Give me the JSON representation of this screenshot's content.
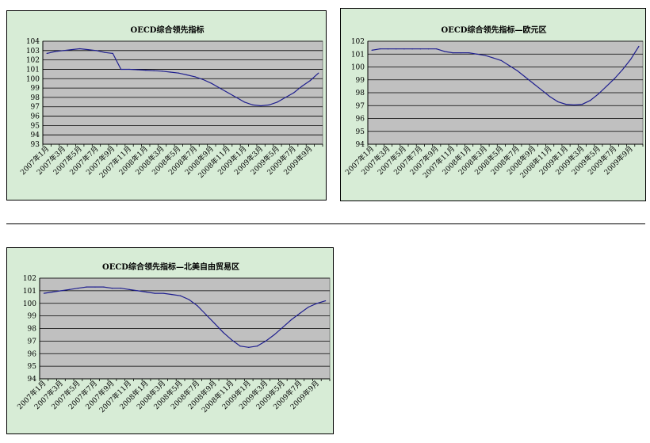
{
  "chart_data": [
    {
      "type": "line",
      "title": "OECD综合领先指标",
      "xlabel": "",
      "ylabel": "",
      "ylim": [
        93,
        104
      ],
      "yticks": [
        93,
        94,
        95,
        96,
        97,
        98,
        99,
        100,
        101,
        102,
        103,
        104
      ],
      "grid": true,
      "x_tick_labels": [
        "2007年1月",
        "2007年3月",
        "2007年5月",
        "2007年7月",
        "2007年9月",
        "2007年11月",
        "2008年1月",
        "2008年3月",
        "2008年5月",
        "2008年7月",
        "2008年9月",
        "2008年11月",
        "2009年1月",
        "2009年3月",
        "2009年5月",
        "2009年7月",
        "2009年9月"
      ],
      "x": [
        "2007-01",
        "2007-02",
        "2007-03",
        "2007-04",
        "2007-05",
        "2007-06",
        "2007-07",
        "2007-08",
        "2007-09",
        "2007-10",
        "2007-11",
        "2007-12",
        "2008-01",
        "2008-02",
        "2008-03",
        "2008-04",
        "2008-05",
        "2008-06",
        "2008-07",
        "2008-08",
        "2008-09",
        "2008-10",
        "2008-11",
        "2008-12",
        "2009-01",
        "2009-02",
        "2009-03",
        "2009-04",
        "2009-05",
        "2009-06",
        "2009-07",
        "2009-08",
        "2009-09",
        "2009-10"
      ],
      "series": [
        {
          "color": "#1f1f8f",
          "values": [
            102.7,
            102.9,
            103.0,
            103.1,
            103.2,
            103.1,
            103.0,
            102.8,
            102.7,
            101.0,
            101.0,
            100.95,
            100.9,
            100.85,
            100.8,
            100.7,
            100.6,
            100.4,
            100.2,
            99.9,
            99.5,
            99.0,
            98.5,
            98.0,
            97.5,
            97.2,
            97.1,
            97.2,
            97.5,
            98.0,
            98.5,
            99.2,
            99.8,
            100.6
          ]
        }
      ]
    },
    {
      "type": "line",
      "title": "OECD综合领先指标—欧元区",
      "xlabel": "",
      "ylabel": "",
      "ylim": [
        94,
        102
      ],
      "yticks": [
        94,
        95,
        96,
        97,
        98,
        99,
        100,
        101,
        102
      ],
      "grid": true,
      "x_tick_labels": [
        "2007年1月",
        "2007年3月",
        "2007年5月",
        "2007年7月",
        "2007年9月",
        "2007年11月",
        "2008年1月",
        "2008年3月",
        "2008年5月",
        "2008年7月",
        "2008年9月",
        "2008年11月",
        "2009年1月",
        "2009年3月",
        "2009年5月",
        "2009年7月",
        "2009年9月"
      ],
      "x": [
        "2007-01",
        "2007-02",
        "2007-03",
        "2007-04",
        "2007-05",
        "2007-06",
        "2007-07",
        "2007-08",
        "2007-09",
        "2007-10",
        "2007-11",
        "2007-12",
        "2008-01",
        "2008-02",
        "2008-03",
        "2008-04",
        "2008-05",
        "2008-06",
        "2008-07",
        "2008-08",
        "2008-09",
        "2008-10",
        "2008-11",
        "2008-12",
        "2009-01",
        "2009-02",
        "2009-03",
        "2009-04",
        "2009-05",
        "2009-06",
        "2009-07",
        "2009-08",
        "2009-09",
        "2009-10"
      ],
      "series": [
        {
          "color": "#1f1f8f",
          "values": [
            101.3,
            101.4,
            101.4,
            101.4,
            101.4,
            101.4,
            101.4,
            101.4,
            101.4,
            101.2,
            101.1,
            101.1,
            101.1,
            101.0,
            100.9,
            100.7,
            100.5,
            100.1,
            99.7,
            99.2,
            98.7,
            98.2,
            97.7,
            97.3,
            97.1,
            97.05,
            97.1,
            97.4,
            97.9,
            98.5,
            99.1,
            99.8,
            100.6,
            101.6
          ]
        }
      ]
    },
    {
      "type": "line",
      "title": "OECD综合领先指标—北美自由贸易区",
      "xlabel": "",
      "ylabel": "",
      "ylim": [
        94,
        102
      ],
      "yticks": [
        94,
        95,
        96,
        97,
        98,
        99,
        100,
        101,
        102
      ],
      "grid": true,
      "x_tick_labels": [
        "2007年1月",
        "2007年3月",
        "2007年5月",
        "2007年7月",
        "2007年9月",
        "2007年11月",
        "2008年1月",
        "2008年3月",
        "2008年5月",
        "2008年7月",
        "2008年9月",
        "2008年11月",
        "2009年1月",
        "2009年3月",
        "2009年5月",
        "2009年7月",
        "2009年9月"
      ],
      "x": [
        "2007-01",
        "2007-02",
        "2007-03",
        "2007-04",
        "2007-05",
        "2007-06",
        "2007-07",
        "2007-08",
        "2007-09",
        "2007-10",
        "2007-11",
        "2007-12",
        "2008-01",
        "2008-02",
        "2008-03",
        "2008-04",
        "2008-05",
        "2008-06",
        "2008-07",
        "2008-08",
        "2008-09",
        "2008-10",
        "2008-11",
        "2008-12",
        "2009-01",
        "2009-02",
        "2009-03",
        "2009-04",
        "2009-05",
        "2009-06",
        "2009-07",
        "2009-08",
        "2009-09",
        "2009-10"
      ],
      "series": [
        {
          "color": "#1f1f8f",
          "values": [
            100.8,
            100.9,
            101.0,
            101.1,
            101.2,
            101.3,
            101.3,
            101.3,
            101.2,
            101.2,
            101.1,
            101.0,
            100.9,
            100.8,
            100.8,
            100.7,
            100.6,
            100.3,
            99.8,
            99.1,
            98.4,
            97.7,
            97.1,
            96.6,
            96.5,
            96.6,
            97.0,
            97.5,
            98.1,
            98.7,
            99.2,
            99.7,
            100.0,
            100.2
          ]
        }
      ]
    }
  ]
}
